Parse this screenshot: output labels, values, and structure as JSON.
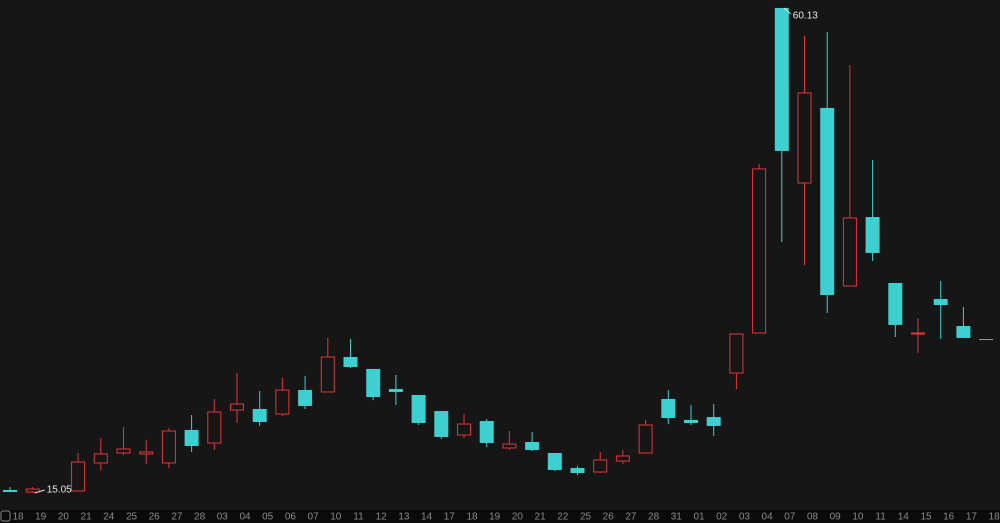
{
  "chart_data": {
    "type": "candlestick",
    "categories": [
      "18",
      "19",
      "20",
      "21",
      "24",
      "25",
      "26",
      "27",
      "28",
      "03",
      "04",
      "05",
      "06",
      "07",
      "10",
      "11",
      "12",
      "13",
      "14",
      "17",
      "18",
      "19",
      "20",
      "21",
      "22",
      "25",
      "26",
      "27",
      "28",
      "31",
      "01",
      "02",
      "03",
      "04",
      "07",
      "08",
      "09",
      "10",
      "11",
      "14",
      "15",
      "16",
      "17",
      "18"
    ],
    "open": [
      15.33,
      15.14,
      null,
      15.24,
      17.84,
      18.77,
      18.68,
      17.84,
      20.91,
      19.7,
      22.76,
      22.86,
      22.39,
      24.62,
      24.44,
      27.69,
      26.58,
      24.72,
      24.16,
      22.67,
      20.44,
      21.74,
      19.23,
      19.79,
      18.77,
      17.37,
      17.0,
      18.02,
      18.77,
      23.79,
      21.84,
      22.11,
      26.2,
      29.92,
      60.13,
      43.86,
      50.84,
      34.29,
      40.7,
      34.57,
      29.83,
      33.08,
      30.57,
      29.36
    ],
    "close": [
      15.14,
      15.42,
      null,
      17.93,
      18.68,
      19.14,
      18.86,
      20.81,
      19.42,
      22.58,
      23.32,
      21.65,
      24.62,
      23.14,
      27.69,
      26.76,
      23.97,
      24.44,
      21.56,
      20.26,
      21.46,
      19.7,
      19.6,
      19.05,
      17.19,
      16.91,
      18.12,
      18.49,
      21.37,
      22.02,
      21.56,
      21.28,
      29.83,
      45.17,
      46.84,
      52.23,
      33.45,
      40.61,
      37.36,
      30.67,
      29.92,
      32.52,
      29.46,
      29.36
    ],
    "high": [
      15.61,
      15.61,
      null,
      18.77,
      20.16,
      21.18,
      19.98,
      21.09,
      22.3,
      23.79,
      26.2,
      24.53,
      25.74,
      25.93,
      29.46,
      29.36,
      26.58,
      26.02,
      24.16,
      22.67,
      22.39,
      21.93,
      20.81,
      20.72,
      18.77,
      17.56,
      18.86,
      19.05,
      21.84,
      24.62,
      23.23,
      23.32,
      29.83,
      45.63,
      60.13,
      57.53,
      57.9,
      54.83,
      46.0,
      34.57,
      31.32,
      34.76,
      32.34,
      29.36
    ],
    "low": [
      15.14,
      15.05,
      null,
      15.24,
      17.19,
      18.58,
      17.75,
      17.37,
      18.86,
      19.05,
      21.56,
      21.28,
      22.21,
      22.86,
      24.44,
      26.67,
      23.69,
      23.23,
      21.37,
      20.07,
      20.16,
      19.33,
      19.05,
      18.95,
      17.09,
      16.72,
      16.91,
      17.75,
      18.77,
      21.46,
      21.37,
      20.35,
      24.72,
      29.92,
      38.38,
      36.24,
      31.78,
      34.29,
      36.61,
      29.55,
      28.06,
      29.36,
      29.46,
      29.36
    ],
    "up_color": "#e2363e",
    "down_color": "#3ecfd0",
    "flat_color": "#9a9a9a",
    "ylim": [
      13.47,
      60.87
    ]
  }
}
